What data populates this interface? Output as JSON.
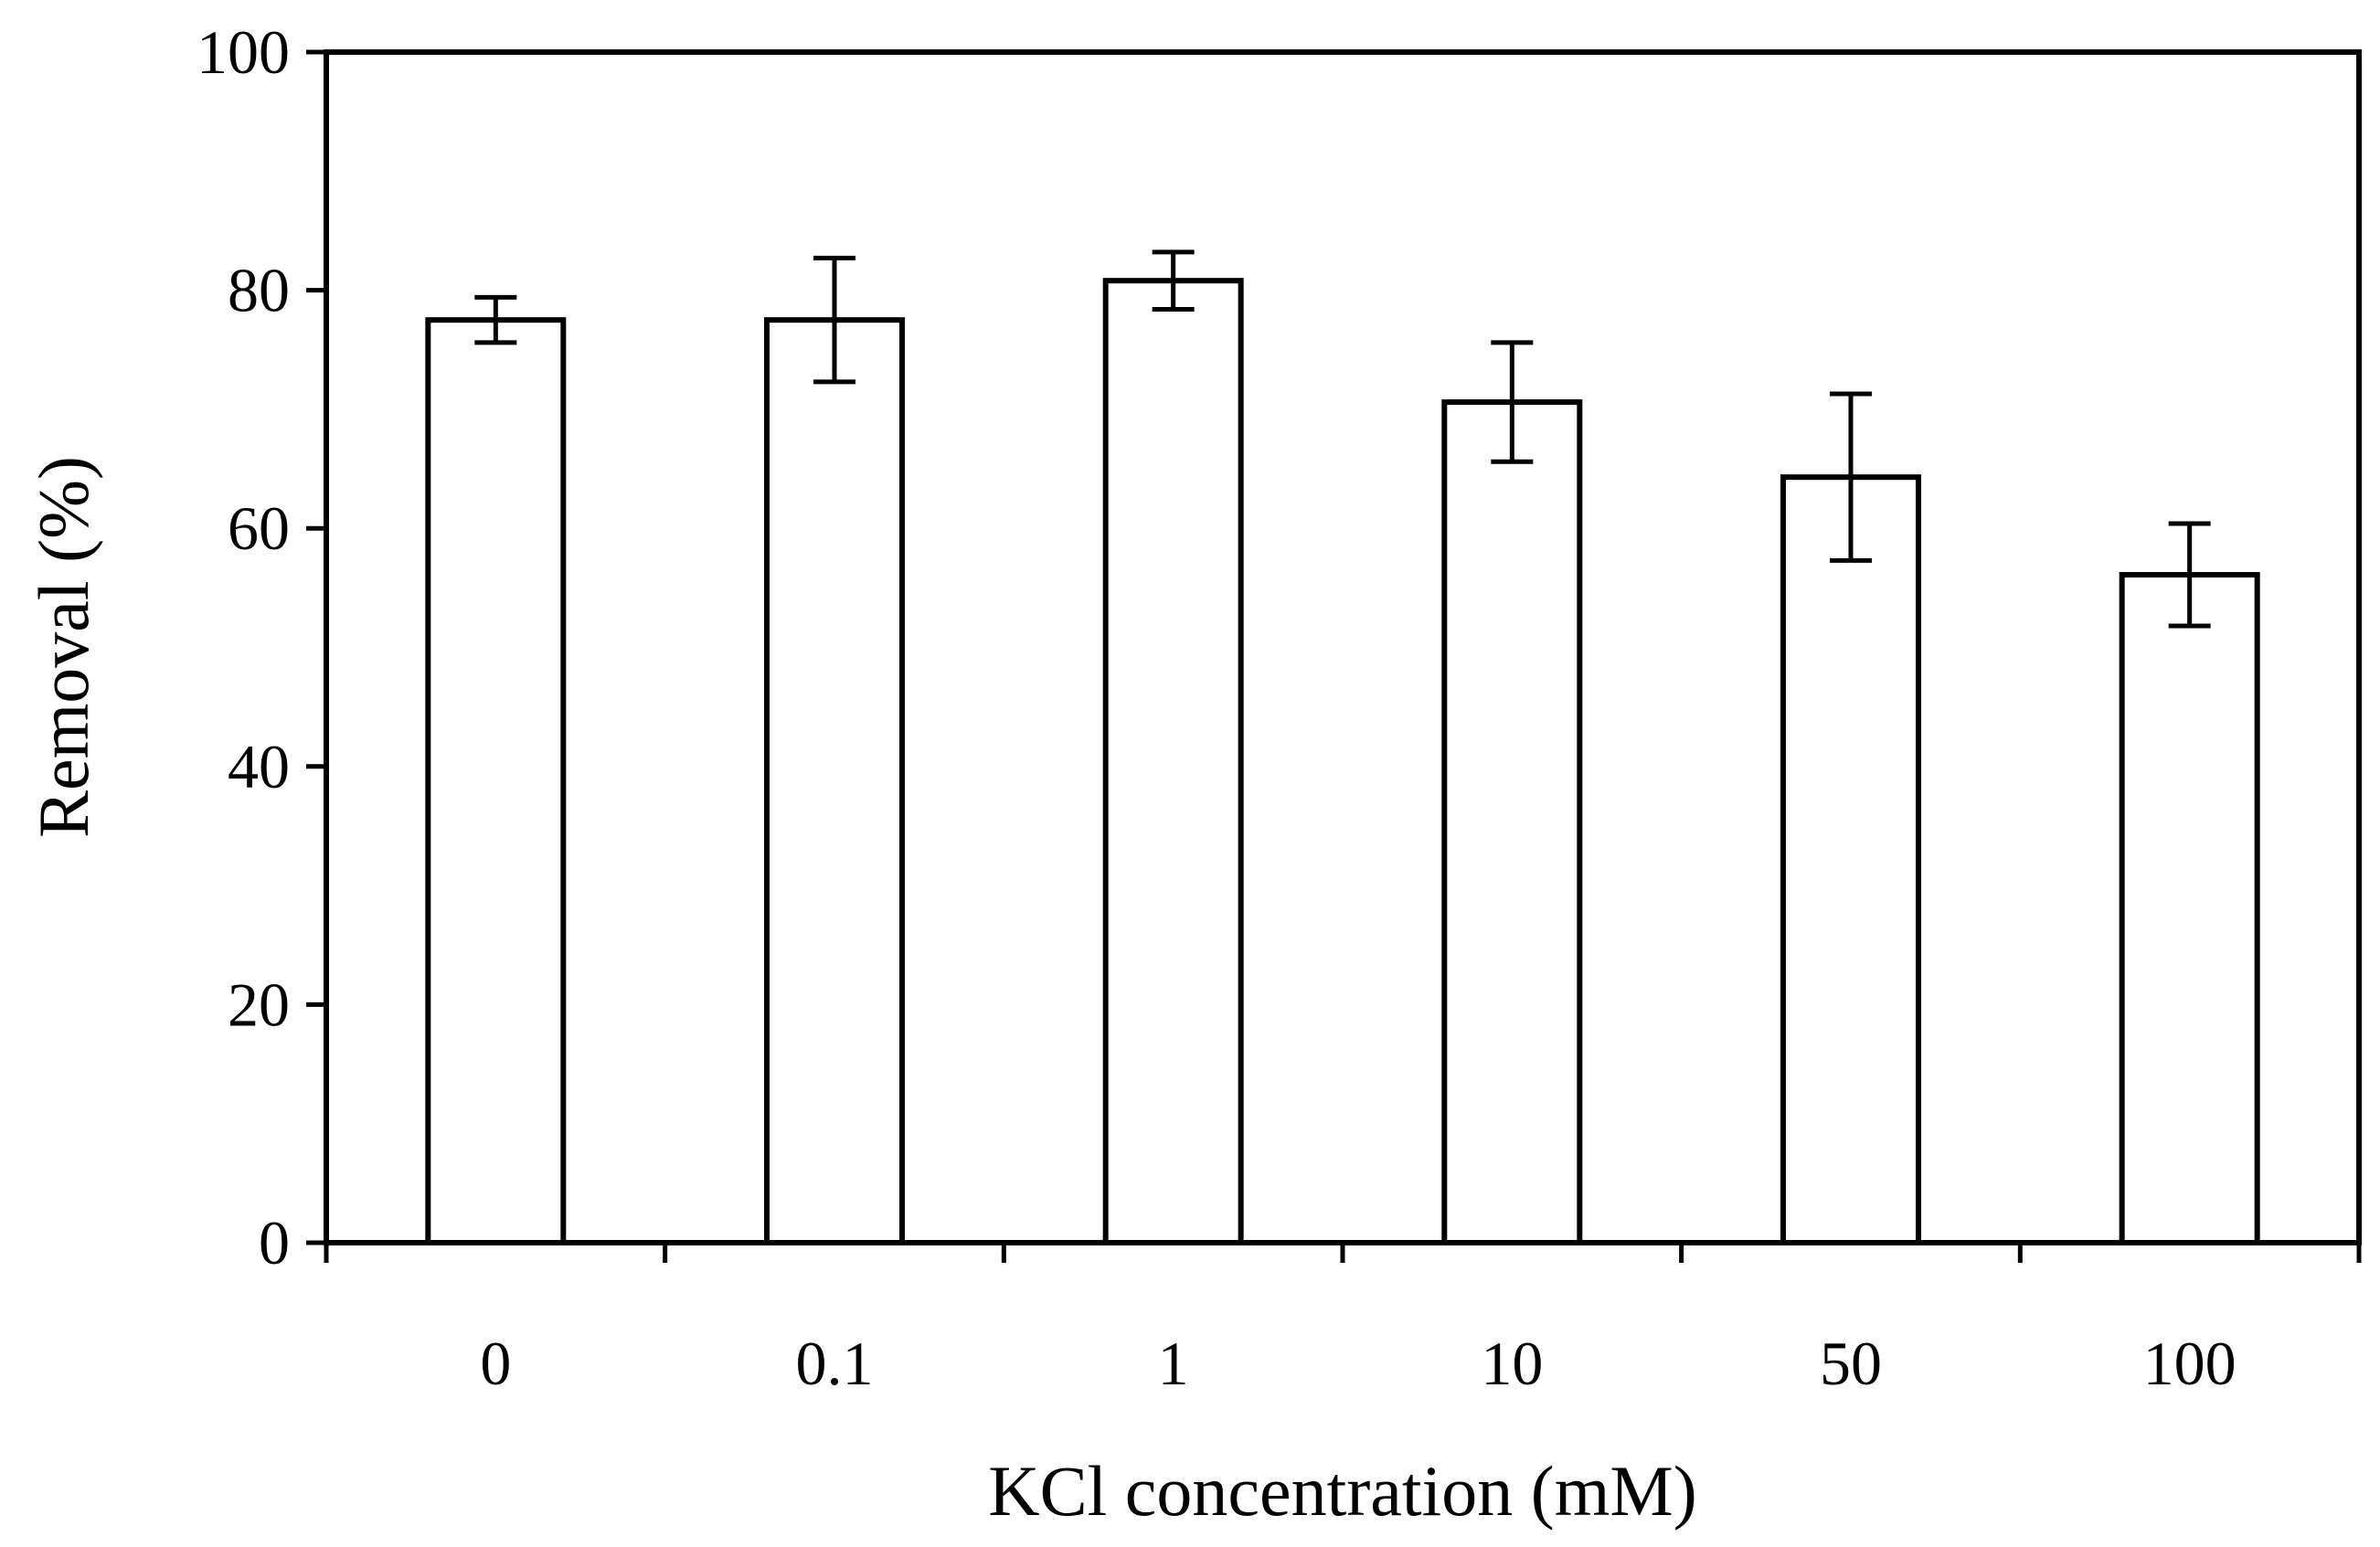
{
  "chart_data": {
    "type": "bar",
    "title": "",
    "xlabel": "KCl concentration (mM)",
    "ylabel": "Removal (%)",
    "categories": [
      "0",
      "0.1",
      "1",
      "10",
      "50",
      "100"
    ],
    "values": [
      77.5,
      77.5,
      80.8,
      70.6,
      64.3,
      56.1
    ],
    "errors": [
      1.9,
      5.2,
      2.4,
      5.0,
      7.0,
      4.3
    ],
    "ylim": [
      0,
      100
    ],
    "yticks": [
      "0",
      "20",
      "40",
      "60",
      "80",
      "100"
    ],
    "ytick_values": [
      0,
      20,
      40,
      60,
      80,
      100
    ],
    "grid": false,
    "legend": "none",
    "bar_fill": "#ffffff",
    "bar_stroke": "#000000"
  }
}
